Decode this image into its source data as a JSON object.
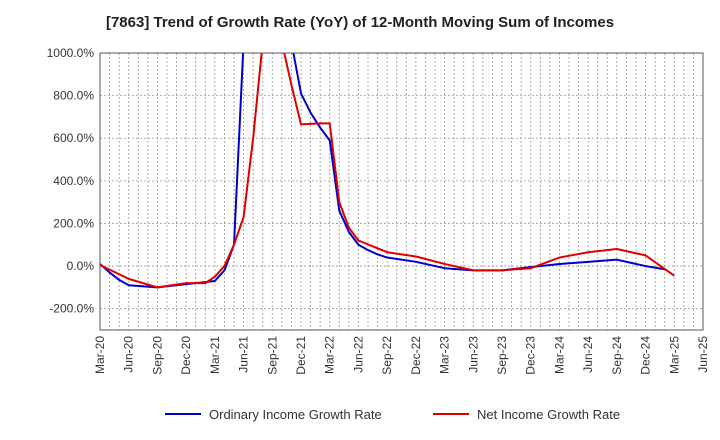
{
  "chart_data": {
    "type": "line",
    "title": "[7863]  Trend of Growth Rate (YoY) of 12-Month Moving Sum of Incomes",
    "xlabel": "",
    "ylabel": "",
    "ylim": [
      -300,
      1000
    ],
    "y_ticks": [
      1000,
      800,
      600,
      400,
      200,
      0,
      -200
    ],
    "y_tick_labels": [
      "1000.0%",
      "800.0%",
      "600.0%",
      "400.0%",
      "200.0%",
      "0.0%",
      "-200.0%"
    ],
    "x_range": [
      "2020-03",
      "2025-06"
    ],
    "x_ticks": [
      "2020-03",
      "2020-06",
      "2020-09",
      "2020-12",
      "2021-03",
      "2021-06",
      "2021-09",
      "2021-12",
      "2022-03",
      "2022-06",
      "2022-09",
      "2022-12",
      "2023-03",
      "2023-06",
      "2023-09",
      "2023-12",
      "2024-03",
      "2024-06",
      "2024-09",
      "2024-12",
      "2025-03",
      "2025-06"
    ],
    "x_tick_labels": [
      "Mar-20",
      "Jun-20",
      "Sep-20",
      "Dec-20",
      "Mar-21",
      "Jun-21",
      "Sep-21",
      "Dec-21",
      "Mar-22",
      "Jun-22",
      "Sep-22",
      "Dec-22",
      "Mar-23",
      "Jun-23",
      "Sep-23",
      "Dec-23",
      "Mar-24",
      "Jun-24",
      "Sep-24",
      "Dec-24",
      "Mar-25",
      "Jun-25"
    ],
    "grid": true,
    "legend_position": "bottom",
    "series": [
      {
        "name": "Ordinary Income Growth Rate",
        "color": "#0000cc",
        "points": [
          [
            "2020-03",
            10
          ],
          [
            "2020-04",
            -30
          ],
          [
            "2020-05",
            -65
          ],
          [
            "2020-06",
            -90
          ],
          [
            "2020-09",
            -100
          ],
          [
            "2020-12",
            -85
          ],
          [
            "2021-01",
            -80
          ],
          [
            "2021-02",
            -75
          ],
          [
            "2021-03",
            -70
          ],
          [
            "2021-04",
            -20
          ],
          [
            "2021-05",
            100
          ],
          [
            "2021-06",
            1050
          ],
          [
            "2021-11",
            1050
          ],
          [
            "2021-12",
            810
          ],
          [
            "2022-01",
            720
          ],
          [
            "2022-02",
            650
          ],
          [
            "2022-03",
            590
          ],
          [
            "2022-04",
            260
          ],
          [
            "2022-05",
            160
          ],
          [
            "2022-06",
            100
          ],
          [
            "2022-07",
            75
          ],
          [
            "2022-08",
            55
          ],
          [
            "2022-09",
            40
          ],
          [
            "2022-12",
            20
          ],
          [
            "2023-03",
            -10
          ],
          [
            "2023-06",
            -20
          ],
          [
            "2023-09",
            -20
          ],
          [
            "2023-12",
            -5
          ],
          [
            "2024-03",
            10
          ],
          [
            "2024-06",
            20
          ],
          [
            "2024-09",
            30
          ],
          [
            "2024-12",
            0
          ],
          [
            "2025-02",
            -15
          ]
        ]
      },
      {
        "name": "Net Income Growth Rate",
        "color": "#dd0000",
        "points": [
          [
            "2020-03",
            5
          ],
          [
            "2020-06",
            -60
          ],
          [
            "2020-09",
            -100
          ],
          [
            "2020-12",
            -80
          ],
          [
            "2021-02",
            -80
          ],
          [
            "2021-03",
            -50
          ],
          [
            "2021-04",
            0
          ],
          [
            "2021-05",
            100
          ],
          [
            "2021-06",
            230
          ],
          [
            "2021-07",
            600
          ],
          [
            "2021-08",
            1050
          ],
          [
            "2021-10",
            1050
          ],
          [
            "2021-11",
            850
          ],
          [
            "2021-12",
            665
          ],
          [
            "2022-02",
            670
          ],
          [
            "2022-03",
            670
          ],
          [
            "2022-04",
            300
          ],
          [
            "2022-05",
            180
          ],
          [
            "2022-06",
            120
          ],
          [
            "2022-09",
            65
          ],
          [
            "2022-12",
            45
          ],
          [
            "2023-03",
            10
          ],
          [
            "2023-06",
            -20
          ],
          [
            "2023-09",
            -20
          ],
          [
            "2023-12",
            -10
          ],
          [
            "2024-03",
            40
          ],
          [
            "2024-06",
            65
          ],
          [
            "2024-09",
            80
          ],
          [
            "2024-12",
            50
          ],
          [
            "2025-03",
            -45
          ]
        ]
      }
    ]
  }
}
